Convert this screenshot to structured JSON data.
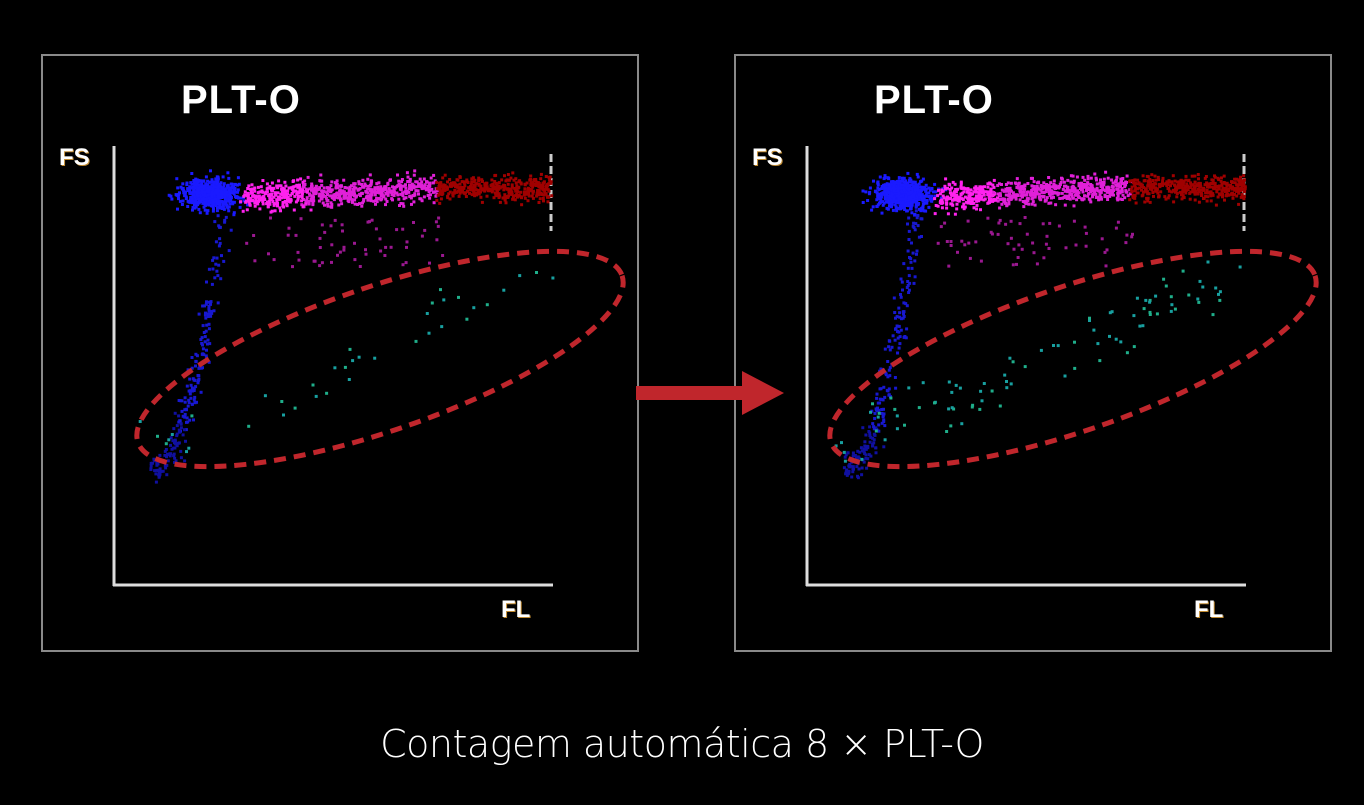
{
  "panels": [
    {
      "title": "PLT-O",
      "y_label": "FS",
      "x_label": "FL",
      "state": "before"
    },
    {
      "title": "PLT-O",
      "y_label": "FS",
      "x_label": "FL",
      "state": "after"
    }
  ],
  "caption": "Contagem automática 8 × PLT-O",
  "colors": {
    "background": "#000000",
    "cluster_blue": "#1a1aff",
    "cluster_magenta": "#ff22ee",
    "cluster_red": "#a00000",
    "highlight_points": "#1fae8a",
    "ellipse": "#c0262c",
    "arrow": "#c0262c"
  }
}
